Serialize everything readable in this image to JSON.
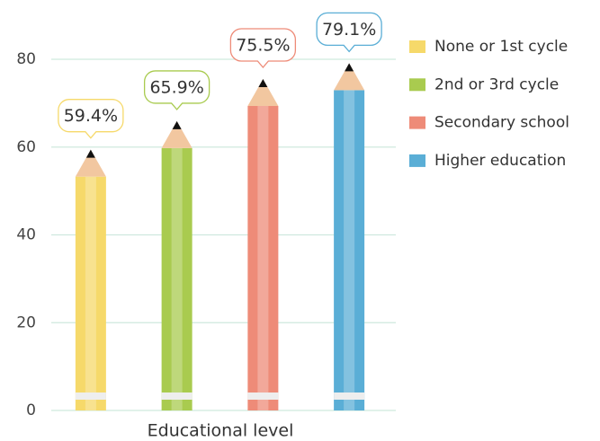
{
  "chart_data": {
    "type": "pencil-bar",
    "x_label": "Educational level",
    "categories": [
      null
    ],
    "series": [
      {
        "name": "None or 1st cycle",
        "color": "#f6d96a",
        "values": [
          59.4
        ],
        "value_labels": [
          "59.4%"
        ]
      },
      {
        "name": "2nd or 3rd cycle",
        "color": "#a9cb4f",
        "values": [
          65.9
        ],
        "value_labels": [
          "65.9%"
        ]
      },
      {
        "name": "Secondary school",
        "color": "#ee8b78",
        "values": [
          75.5
        ],
        "value_labels": [
          "75.5%"
        ]
      },
      {
        "name": "Higher education",
        "color": "#5aaed6",
        "values": [
          79.1
        ],
        "value_labels": [
          "79.1%"
        ]
      }
    ],
    "ylim": [
      0,
      80
    ],
    "yticks": [
      0,
      20,
      40,
      60,
      80
    ],
    "grid": true,
    "legend": "right"
  }
}
